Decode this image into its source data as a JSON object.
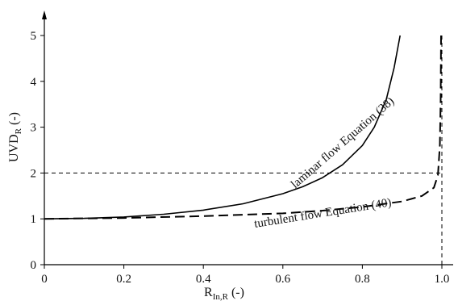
{
  "chart_data": {
    "type": "line",
    "title": "",
    "xlabel": {
      "main": "R",
      "sub": "In,R",
      "suffix": " (-)"
    },
    "ylabel": {
      "main": "UVD",
      "sub": "R",
      "suffix": " (-)"
    },
    "xlim": [
      0,
      1.0
    ],
    "ylim": [
      0,
      5
    ],
    "xticks": [
      0,
      0.2,
      0.4,
      0.6,
      0.8,
      1.0
    ],
    "xtick_labels": [
      "0",
      "0.2",
      "0.4",
      "0.6",
      "0.8",
      "1.0"
    ],
    "yticks": [
      0,
      1,
      2,
      3,
      4,
      5
    ],
    "ytick_labels": [
      "0",
      "1",
      "2",
      "3",
      "4",
      "5"
    ],
    "grid": false,
    "series": [
      {
        "name": "laminar flow Equation (38)",
        "style": "solid",
        "color": "#000000",
        "x": [
          0,
          0.1,
          0.2,
          0.3,
          0.4,
          0.5,
          0.6,
          0.65,
          0.7,
          0.75,
          0.8,
          0.83,
          0.86,
          0.88,
          0.895
        ],
        "y": [
          1.0,
          1.01,
          1.04,
          1.1,
          1.19,
          1.33,
          1.55,
          1.7,
          1.9,
          2.18,
          2.6,
          3.0,
          3.6,
          4.3,
          5.0
        ]
      },
      {
        "name": "turbulent flow Equation (40)",
        "style": "dashed",
        "color": "#000000",
        "x": [
          0,
          0.2,
          0.4,
          0.6,
          0.7,
          0.8,
          0.9,
          0.95,
          0.98,
          0.99,
          0.995,
          0.997,
          0.998
        ],
        "y": [
          1.0,
          1.02,
          1.06,
          1.12,
          1.18,
          1.26,
          1.38,
          1.5,
          1.68,
          1.95,
          2.6,
          3.6,
          5.0
        ]
      }
    ],
    "reference_lines": [
      {
        "orientation": "horizontal",
        "value": 2,
        "style": "dashed"
      },
      {
        "orientation": "vertical",
        "value": 1.0,
        "style": "dashed"
      }
    ],
    "annotations": [
      {
        "text": "laminar flow Equation (38)",
        "series": 0
      },
      {
        "text": "turbulent flow Equation (40)",
        "series": 1
      }
    ]
  }
}
